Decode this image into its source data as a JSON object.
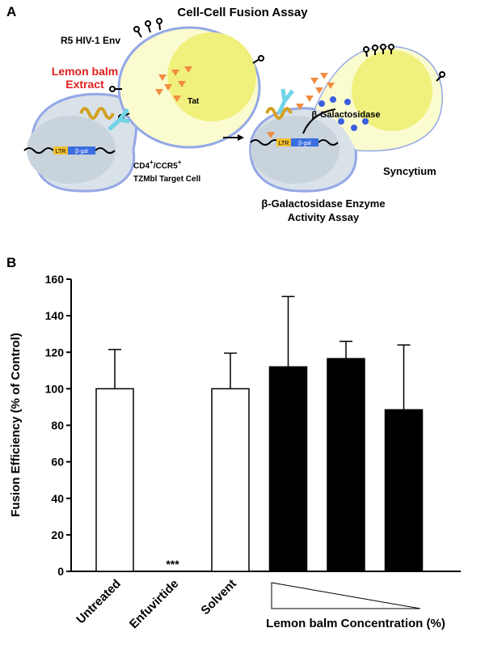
{
  "diagram": {
    "panel_label": "A",
    "title": "Cell-Cell Fusion Assay",
    "env_label": "R5 HIV-1 Env",
    "extract_label": [
      "Lemon balm",
      "Extract"
    ],
    "tat_label": "Tat",
    "target_label": [
      "CD4",
      "+",
      "/CCR5",
      "+",
      "TZMbl Target Cell"
    ],
    "ltr_label": "LTR",
    "gene_label": "β-gal",
    "enzyme_label": "β-Galactosidase",
    "syncytium_label": "Syncytium",
    "assay_label": [
      "β-Galactosidase Enzyme",
      "Activity Assay"
    ]
  },
  "chart_data": {
    "type": "bar",
    "panel_label": "B",
    "ylabel": "Fusion Efficiency (% of Control)",
    "xlabel": "Lemon balm Concentration (%)",
    "categories": [
      "Untreated",
      "Enfuvirtide",
      "Solvent",
      null,
      null,
      null
    ],
    "values": [
      100,
      0,
      100,
      112,
      116.5,
      88.5
    ],
    "errors": [
      21.5,
      null,
      19.5,
      38.5,
      9.5,
      35.5
    ],
    "colors": [
      "#ffffff",
      "#ffffff",
      "#ffffff",
      "#000000",
      "#000000",
      "#000000"
    ],
    "annotation": "***",
    "ylim": [
      0,
      160
    ],
    "yticks": [
      0,
      20,
      40,
      60,
      80,
      100,
      120,
      140,
      160
    ]
  }
}
